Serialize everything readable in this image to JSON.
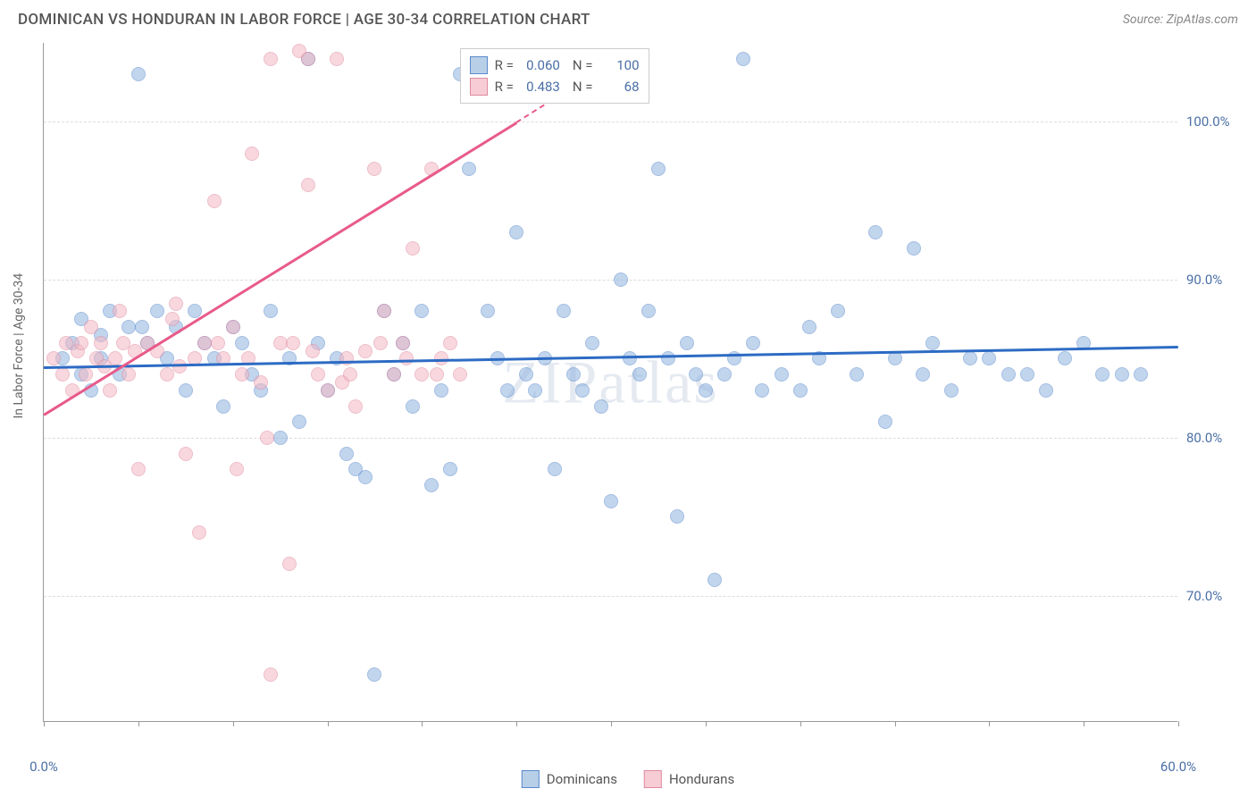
{
  "title": "DOMINICAN VS HONDURAN IN LABOR FORCE | AGE 30-34 CORRELATION CHART",
  "source": "Source: ZipAtlas.com",
  "watermark": "ZIPatlas",
  "y_axis_label": "In Labor Force | Age 30-34",
  "chart": {
    "type": "scatter",
    "xlim": [
      0,
      60
    ],
    "ylim": [
      62,
      105
    ],
    "x_ticks": [
      0,
      5,
      10,
      15,
      20,
      25,
      30,
      35,
      40,
      45,
      50,
      55,
      60
    ],
    "x_tick_labels": {
      "0": "0.0%",
      "60": "60.0%"
    },
    "y_ticks": [
      70,
      80,
      90,
      100
    ],
    "y_tick_labels": {
      "70": "70.0%",
      "80": "80.0%",
      "90": "90.0%",
      "100": "100.0%"
    },
    "grid_color": "#dddddd",
    "axis_color": "#999999",
    "tick_label_color": "#4a6fa5",
    "background_color": "#ffffff",
    "point_radius": 8,
    "point_opacity": 0.55,
    "series": [
      {
        "name": "Dominicans",
        "color": "#8fb3e0",
        "border_color": "#5a8acc",
        "r_value": "0.060",
        "n_value": "100",
        "trend": {
          "x1": 0,
          "y1": 84.5,
          "x2": 60,
          "y2": 85.8,
          "color": "#2d6bc4"
        },
        "points": [
          [
            1,
            85
          ],
          [
            1.5,
            86
          ],
          [
            2,
            84
          ],
          [
            2,
            87.5
          ],
          [
            2.5,
            83
          ],
          [
            3,
            85
          ],
          [
            3,
            86.5
          ],
          [
            3.5,
            88
          ],
          [
            4,
            84
          ],
          [
            4.5,
            87
          ],
          [
            5,
            103
          ],
          [
            5.2,
            87
          ],
          [
            5.5,
            86
          ],
          [
            6,
            88
          ],
          [
            6.5,
            85
          ],
          [
            7,
            87
          ],
          [
            7.5,
            83
          ],
          [
            8,
            88
          ],
          [
            8.5,
            86
          ],
          [
            9,
            85
          ],
          [
            9.5,
            82
          ],
          [
            10,
            87
          ],
          [
            10.5,
            86
          ],
          [
            11,
            84
          ],
          [
            11.5,
            83
          ],
          [
            12,
            88
          ],
          [
            12.5,
            80
          ],
          [
            13,
            85
          ],
          [
            13.5,
            81
          ],
          [
            14,
            104
          ],
          [
            14.5,
            86
          ],
          [
            15,
            83
          ],
          [
            15.5,
            85
          ],
          [
            16,
            79
          ],
          [
            16.5,
            78
          ],
          [
            17,
            77.5
          ],
          [
            17.5,
            65
          ],
          [
            18,
            88
          ],
          [
            18.5,
            84
          ],
          [
            19,
            86
          ],
          [
            19.5,
            82
          ],
          [
            20,
            88
          ],
          [
            20.5,
            77
          ],
          [
            21,
            83
          ],
          [
            21.5,
            78
          ],
          [
            22,
            103
          ],
          [
            22.5,
            97
          ],
          [
            23.5,
            88
          ],
          [
            24,
            85
          ],
          [
            24.5,
            83
          ],
          [
            25,
            93
          ],
          [
            25.5,
            84
          ],
          [
            26,
            83
          ],
          [
            26.5,
            85
          ],
          [
            27,
            78
          ],
          [
            27.5,
            88
          ],
          [
            28,
            84
          ],
          [
            28.5,
            83
          ],
          [
            29,
            86
          ],
          [
            29.5,
            82
          ],
          [
            30,
            76
          ],
          [
            30.5,
            90
          ],
          [
            31,
            85
          ],
          [
            31.5,
            84
          ],
          [
            32,
            88
          ],
          [
            32.5,
            97
          ],
          [
            33,
            85
          ],
          [
            33.5,
            75
          ],
          [
            34,
            86
          ],
          [
            34.5,
            84
          ],
          [
            35,
            83
          ],
          [
            35.5,
            71
          ],
          [
            36,
            84
          ],
          [
            36.5,
            85
          ],
          [
            37,
            104
          ],
          [
            37.5,
            86
          ],
          [
            38,
            83
          ],
          [
            39,
            84
          ],
          [
            40,
            83
          ],
          [
            40.5,
            87
          ],
          [
            41,
            85
          ],
          [
            42,
            88
          ],
          [
            43,
            84
          ],
          [
            44,
            93
          ],
          [
            44.5,
            81
          ],
          [
            45,
            85
          ],
          [
            46,
            92
          ],
          [
            46.5,
            84
          ],
          [
            47,
            86
          ],
          [
            48,
            83
          ],
          [
            49,
            85
          ],
          [
            50,
            85
          ],
          [
            51,
            84
          ],
          [
            52,
            84
          ],
          [
            53,
            83
          ],
          [
            54,
            85
          ],
          [
            55,
            86
          ],
          [
            56,
            84
          ],
          [
            57,
            84
          ],
          [
            58,
            84
          ]
        ]
      },
      {
        "name": "Hondurans",
        "color": "#f4b8c4",
        "border_color": "#e08aa0",
        "r_value": "0.483",
        "n_value": "68",
        "trend": {
          "x1": 0,
          "y1": 81.5,
          "x2": 25,
          "y2": 100,
          "color": "#e85a8a"
        },
        "trend_dash": {
          "x1": 25,
          "y1": 100,
          "x2": 31,
          "y2": 104.5,
          "color": "#e85a8a"
        },
        "points": [
          [
            0.5,
            85
          ],
          [
            1,
            84
          ],
          [
            1.2,
            86
          ],
          [
            1.5,
            83
          ],
          [
            1.8,
            85.5
          ],
          [
            2,
            86
          ],
          [
            2.2,
            84
          ],
          [
            2.5,
            87
          ],
          [
            2.8,
            85
          ],
          [
            3,
            86
          ],
          [
            3.2,
            84.5
          ],
          [
            3.5,
            83
          ],
          [
            3.8,
            85
          ],
          [
            4,
            88
          ],
          [
            4.2,
            86
          ],
          [
            4.5,
            84
          ],
          [
            4.8,
            85.5
          ],
          [
            5,
            78
          ],
          [
            5.5,
            86
          ],
          [
            6,
            85.5
          ],
          [
            6.5,
            84
          ],
          [
            7,
            88.5
          ],
          [
            7.5,
            79
          ],
          [
            8,
            85
          ],
          [
            8.5,
            86
          ],
          [
            9,
            95
          ],
          [
            9.5,
            85
          ],
          [
            10,
            87
          ],
          [
            10.5,
            84
          ],
          [
            11,
            98
          ],
          [
            11.5,
            83.5
          ],
          [
            12,
            104
          ],
          [
            12.5,
            86
          ],
          [
            13,
            72
          ],
          [
            13.5,
            104.5
          ],
          [
            14,
            96
          ],
          [
            14,
            104
          ],
          [
            14.5,
            84
          ],
          [
            15,
            83
          ],
          [
            15.5,
            104
          ],
          [
            16,
            85
          ],
          [
            16.5,
            82
          ],
          [
            17,
            85.5
          ],
          [
            17.5,
            97
          ],
          [
            18,
            88
          ],
          [
            18.5,
            84
          ],
          [
            19,
            86
          ],
          [
            19.5,
            92
          ],
          [
            20,
            84
          ],
          [
            20.5,
            97
          ],
          [
            21,
            85
          ],
          [
            21.5,
            86
          ],
          [
            22,
            84
          ],
          [
            12,
            65
          ],
          [
            8.2,
            74
          ],
          [
            10.2,
            78
          ],
          [
            11.8,
            80
          ],
          [
            6.8,
            87.5
          ],
          [
            7.2,
            84.5
          ],
          [
            9.2,
            86
          ],
          [
            10.8,
            85
          ],
          [
            13.2,
            86
          ],
          [
            14.2,
            85.5
          ],
          [
            15.8,
            83.5
          ],
          [
            16.2,
            84
          ],
          [
            17.8,
            86
          ],
          [
            19.2,
            85
          ],
          [
            20.8,
            84
          ]
        ]
      }
    ]
  },
  "stats_box": {
    "rows": [
      {
        "swatch_fill": "#b8cfe8",
        "swatch_border": "#5a8acc",
        "r_label": "R =",
        "r": "0.060",
        "n_label": "N =",
        "n": "100"
      },
      {
        "swatch_fill": "#f7ccd5",
        "swatch_border": "#e08aa0",
        "r_label": "R =",
        "r": "0.483",
        "n_label": "N =",
        "n": "68"
      }
    ]
  },
  "bottom_legend": [
    {
      "swatch_fill": "#b8cfe8",
      "swatch_border": "#5a8acc",
      "label": "Dominicans"
    },
    {
      "swatch_fill": "#f7ccd5",
      "swatch_border": "#e08aa0",
      "label": "Hondurans"
    }
  ]
}
